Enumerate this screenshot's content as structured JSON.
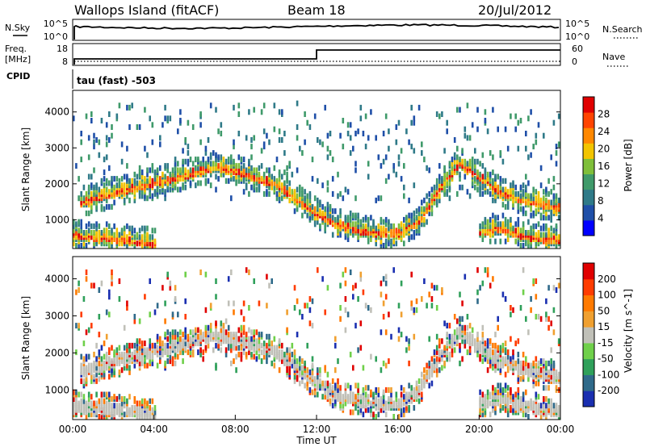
{
  "header": {
    "station": "Wallops Island (fitACF)",
    "beam": "Beam 18",
    "date": "20/Jul/2012"
  },
  "noise_panel": {
    "left_label": "N.Sky",
    "left_ticks": [
      "10^5",
      "10^0"
    ],
    "right_ticks": [
      "10^5",
      "10^0"
    ],
    "right_label": "N.Search"
  },
  "freq_panel": {
    "left_label_1": "Freq.",
    "left_label_2": "[MHz]",
    "left_ticks": [
      "18",
      "8"
    ],
    "right_ticks": [
      "60",
      "0"
    ],
    "right_label": "Nave",
    "step_hour": 12
  },
  "cpid": {
    "label": "CPID",
    "text": "tau (fast) -503"
  },
  "chart_data": [
    {
      "type": "heatmap",
      "quantity": "Power",
      "xlabel": "",
      "ylabel": "Slant Range [km]",
      "x_range_hours": [
        0,
        24
      ],
      "ylim": [
        200,
        4600
      ],
      "y_ticks": [
        "1000",
        "2000",
        "3000",
        "4000"
      ],
      "colorbar_label": "Power [dB]",
      "colorbar_ticks": [
        "28",
        "24",
        "20",
        "16",
        "12",
        "8",
        "4"
      ],
      "colors": [
        "#0000ff",
        "#1f4fa8",
        "#2f7a88",
        "#3f9a6a",
        "#7fbf3a",
        "#f2c400",
        "#ff8800",
        "#ff4400",
        "#e00000"
      ],
      "echo_bands": [
        {
          "name": "main_band",
          "points": [
            [
              0.3,
              1400
            ],
            [
              2,
              1700
            ],
            [
              4,
              1950
            ],
            [
              6,
              2250
            ],
            [
              7,
              2400
            ],
            [
              8,
              2300
            ],
            [
              9,
              2100
            ],
            [
              10,
              1900
            ],
            [
              11,
              1500
            ],
            [
              12,
              1100
            ],
            [
              13,
              800
            ],
            [
              14,
              650
            ],
            [
              15,
              550
            ],
            [
              16,
              550
            ],
            [
              17,
              900
            ],
            [
              18,
              1800
            ],
            [
              19,
              2500
            ],
            [
              20,
              2100
            ],
            [
              21,
              1700
            ],
            [
              22,
              1500
            ],
            [
              24,
              1250
            ]
          ]
        },
        {
          "name": "near_band",
          "points": [
            [
              0,
              500
            ],
            [
              1,
              450
            ],
            [
              2,
              400
            ],
            [
              3,
              350
            ],
            [
              4,
              250
            ]
          ]
        },
        {
          "name": "near_band_evening",
          "points": [
            [
              20,
              600
            ],
            [
              21,
              700
            ],
            [
              22,
              500
            ],
            [
              23,
              400
            ],
            [
              24,
              350
            ]
          ]
        }
      ]
    },
    {
      "type": "heatmap",
      "quantity": "Velocity",
      "xlabel": "Time UT",
      "ylabel": "Slant Range [km]",
      "x_range_hours": [
        0,
        24
      ],
      "ylim": [
        200,
        4600
      ],
      "y_ticks": [
        "1000",
        "2000",
        "3000",
        "4000"
      ],
      "x_ticks": [
        "00:00",
        "04:00",
        "08:00",
        "12:00",
        "16:00",
        "20:00",
        "00:00"
      ],
      "colorbar_label": "Velocity [m s^-1]",
      "colorbar_ticks": [
        "200",
        "100",
        "50",
        "15",
        "-15",
        "-50",
        "-100",
        "-200"
      ],
      "colors": [
        "#1a2fb0",
        "#2f6a8a",
        "#2fa05a",
        "#6fd04a",
        "#c0c0b8",
        "#f0a030",
        "#ff7a00",
        "#ff3c00",
        "#e00000"
      ]
    }
  ]
}
